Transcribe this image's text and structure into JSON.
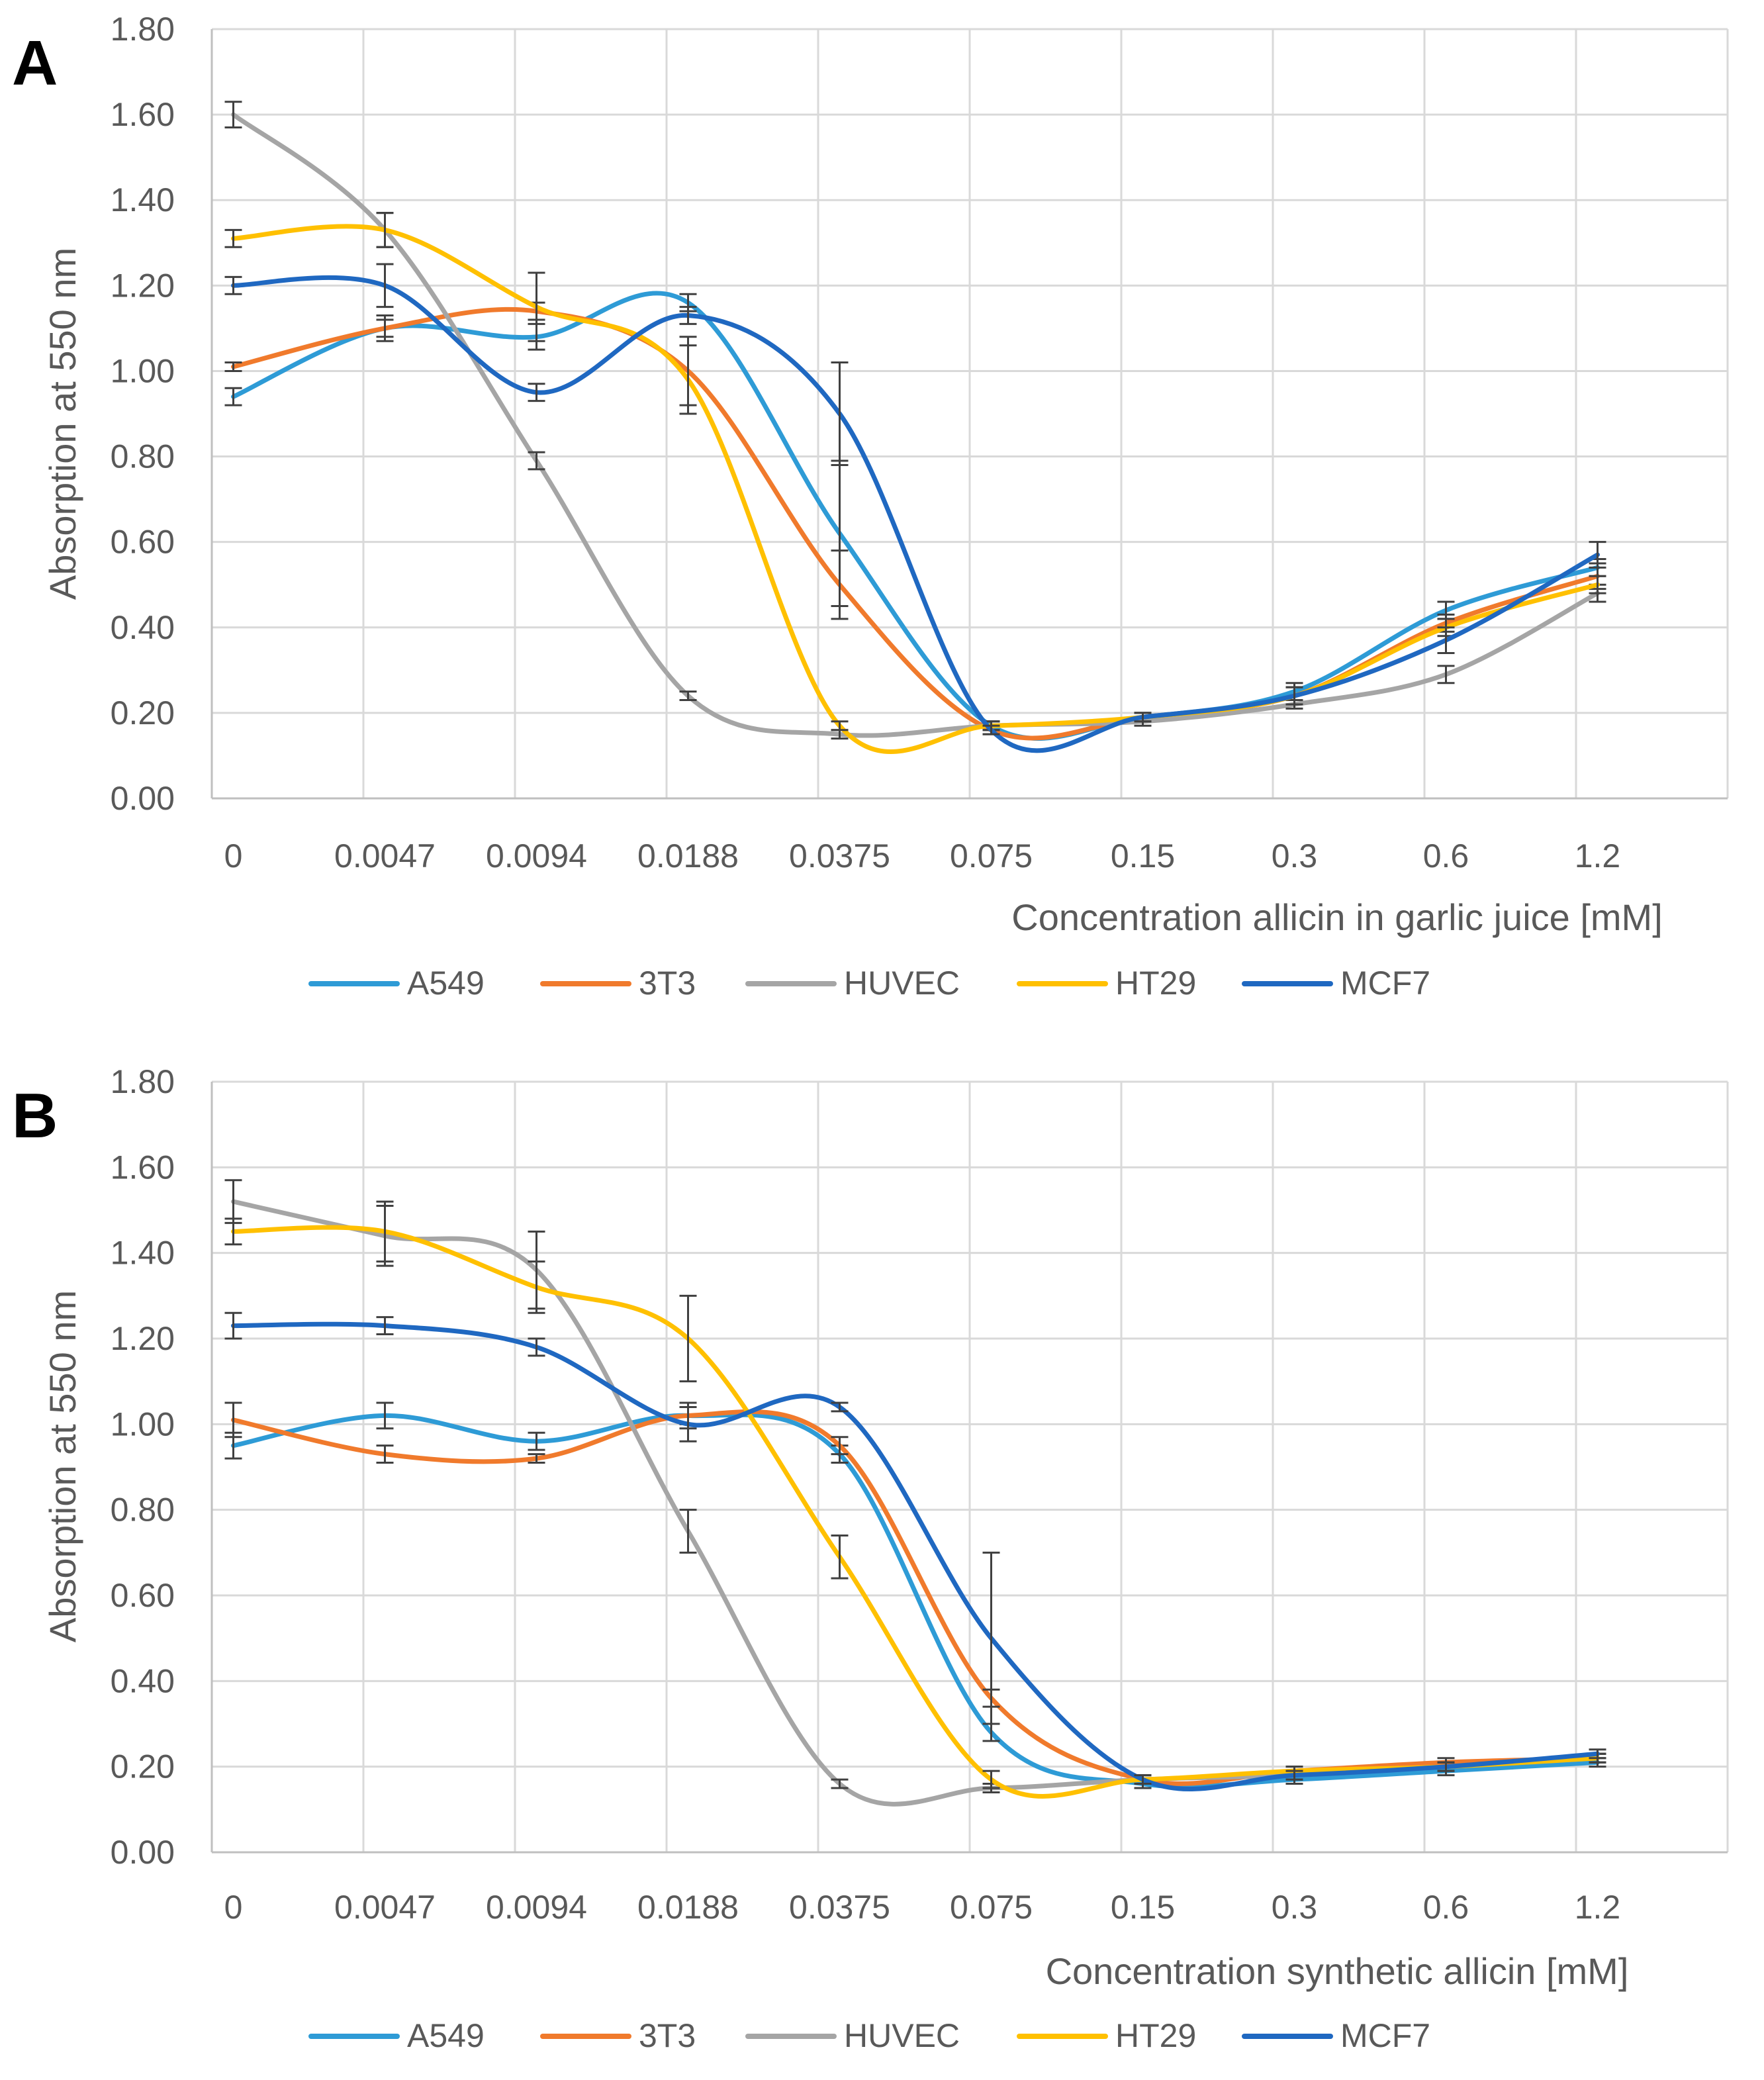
{
  "chart_data": [
    {
      "panel": "A",
      "type": "line",
      "title": "",
      "xlabel": "Concentration allicin in garlic juice [mM]",
      "ylabel": "Absorption at 550 nm",
      "ylim": [
        0,
        1.8
      ],
      "ytick_labels": [
        "0.00",
        "0.20",
        "0.40",
        "0.60",
        "0.80",
        "1.00",
        "1.20",
        "1.40",
        "1.60",
        "1.80"
      ],
      "categories": [
        "0",
        "0.0047",
        "0.0094",
        "0.0188",
        "0.0375",
        "0.075",
        "0.15",
        "0.3",
        "0.6",
        "1.2"
      ],
      "grid": true,
      "legend_position": "bottom",
      "series": [
        {
          "name": "A549",
          "color": "#2E9BD6",
          "values": [
            0.94,
            1.1,
            1.08,
            1.16,
            0.62,
            0.17,
            0.19,
            0.25,
            0.44,
            0.54
          ],
          "errors": [
            0.02,
            0.02,
            0.03,
            0.02,
            0.17,
            0.01,
            0.01,
            0.02,
            0.02,
            0.02
          ]
        },
        {
          "name": "3T3",
          "color": "#F07A2C",
          "values": [
            1.01,
            1.1,
            1.14,
            1.0,
            0.5,
            0.16,
            0.19,
            0.24,
            0.41,
            0.52
          ],
          "errors": [
            0.01,
            0.03,
            0.02,
            0.08,
            0.08,
            0.01,
            0.01,
            0.02,
            0.02,
            0.03
          ]
        },
        {
          "name": "HUVEC",
          "color": "#A5A5A5",
          "values": [
            1.6,
            1.33,
            0.79,
            0.24,
            0.15,
            0.17,
            0.18,
            0.22,
            0.29,
            0.48
          ],
          "errors": [
            0.03,
            0.04,
            0.02,
            0.01,
            0.01,
            0.01,
            0.01,
            0.01,
            0.02,
            0.02
          ]
        },
        {
          "name": "HT29",
          "color": "#FFC000",
          "values": [
            1.31,
            1.33,
            1.15,
            0.98,
            0.17,
            0.17,
            0.19,
            0.24,
            0.4,
            0.5
          ],
          "errors": [
            0.02,
            0.04,
            0.08,
            0.08,
            0.01,
            0.01,
            0.01,
            0.02,
            0.02,
            0.02
          ]
        },
        {
          "name": "MCF7",
          "color": "#1F68C1",
          "values": [
            1.2,
            1.2,
            0.95,
            1.13,
            0.9,
            0.16,
            0.19,
            0.24,
            0.37,
            0.57
          ],
          "errors": [
            0.02,
            0.05,
            0.02,
            0.02,
            0.12,
            0.01,
            0.01,
            0.02,
            0.03,
            0.03
          ]
        }
      ]
    },
    {
      "panel": "B",
      "type": "line",
      "title": "",
      "xlabel": "Concentration synthetic allicin [mM]",
      "ylabel": "Absorption at 550 nm",
      "ylim": [
        0,
        1.8
      ],
      "ytick_labels": [
        "0.00",
        "0.20",
        "0.40",
        "0.60",
        "0.80",
        "1.00",
        "1.20",
        "1.40",
        "1.60",
        "1.80"
      ],
      "categories": [
        "0",
        "0.0047",
        "0.0094",
        "0.0188",
        "0.0375",
        "0.075",
        "0.15",
        "0.3",
        "0.6",
        "1.2"
      ],
      "grid": true,
      "legend_position": "bottom",
      "series": [
        {
          "name": "A549",
          "color": "#2E9BD6",
          "values": [
            0.95,
            1.02,
            0.96,
            1.02,
            0.93,
            0.28,
            0.16,
            0.17,
            0.19,
            0.21
          ],
          "errors": [
            0.03,
            0.03,
            0.02,
            0.03,
            0.02,
            0.02,
            0.01,
            0.01,
            0.01,
            0.01
          ]
        },
        {
          "name": "3T3",
          "color": "#F07A2C",
          "values": [
            1.01,
            0.93,
            0.92,
            1.02,
            0.95,
            0.36,
            0.17,
            0.19,
            0.21,
            0.22
          ],
          "errors": [
            0.04,
            0.02,
            0.01,
            0.02,
            0.02,
            0.02,
            0.01,
            0.01,
            0.01,
            0.01
          ]
        },
        {
          "name": "HUVEC",
          "color": "#A5A5A5",
          "values": [
            1.52,
            1.44,
            1.36,
            0.75,
            0.16,
            0.15,
            0.17,
            0.18,
            0.2,
            0.22
          ],
          "errors": [
            0.05,
            0.07,
            0.09,
            0.05,
            0.01,
            0.01,
            0.01,
            0.01,
            0.01,
            0.01
          ]
        },
        {
          "name": "HT29",
          "color": "#FFC000",
          "values": [
            1.45,
            1.45,
            1.32,
            1.2,
            0.69,
            0.17,
            0.17,
            0.19,
            0.2,
            0.22
          ],
          "errors": [
            0.03,
            0.07,
            0.06,
            0.1,
            0.05,
            0.02,
            0.01,
            0.01,
            0.01,
            0.01
          ]
        },
        {
          "name": "MCF7",
          "color": "#1F68C1",
          "values": [
            1.23,
            1.23,
            1.18,
            1.0,
            1.04,
            0.5,
            0.17,
            0.18,
            0.2,
            0.23
          ],
          "errors": [
            0.03,
            0.02,
            0.02,
            0.04,
            0.01,
            0.2,
            0.01,
            0.01,
            0.01,
            0.01
          ]
        }
      ]
    }
  ]
}
